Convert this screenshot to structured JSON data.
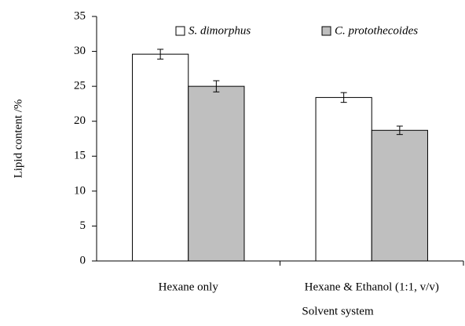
{
  "chart_data": {
    "type": "bar",
    "categories": [
      "Hexane only",
      "Hexane & Ethanol (1:1, v/v)"
    ],
    "series": [
      {
        "name": "S. dimorphus",
        "color": "#ffffff",
        "values": [
          29.6,
          23.4
        ],
        "errors": [
          0.7,
          0.7
        ]
      },
      {
        "name": "C. protothecoides",
        "color": "#bfbfbf",
        "values": [
          25.0,
          18.7
        ],
        "errors": [
          0.8,
          0.6
        ]
      }
    ],
    "xlabel": "Solvent system",
    "ylabel": "Lipid content /%",
    "ylim": [
      0,
      35
    ],
    "yticks": [
      0,
      5,
      10,
      15,
      20,
      25,
      30,
      35
    ],
    "grid": false,
    "legend": "top"
  }
}
